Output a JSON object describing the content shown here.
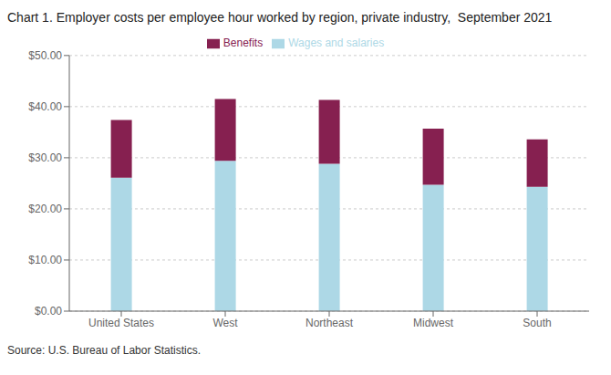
{
  "chart_data": {
    "type": "bar",
    "title": "Chart 1. Employer costs per employee hour worked by region, private industry,  September 2021",
    "annotations": [
      "Source: U.S. Bureau of Labor Statistics."
    ],
    "categories": [
      "United States",
      "West",
      "Northeast",
      "Midwest",
      "South"
    ],
    "series": [
      {
        "name": "Wages and salaries",
        "color": "#ADD8E6",
        "values": [
          26.1,
          29.4,
          28.8,
          24.7,
          24.3
        ]
      },
      {
        "name": "Benefits",
        "color": "#862050",
        "values": [
          11.3,
          12.1,
          12.5,
          11.0,
          9.3
        ]
      }
    ],
    "stacked": true,
    "ylim": [
      0,
      50
    ],
    "yticks": [
      {
        "value": 0,
        "label": "$0.00"
      },
      {
        "value": 10,
        "label": "$10.00"
      },
      {
        "value": 20,
        "label": "$20.00"
      },
      {
        "value": 30,
        "label": "$30.00"
      },
      {
        "value": 40,
        "label": "$40.00"
      },
      {
        "value": 50,
        "label": "$50.00"
      }
    ],
    "grid": true,
    "legend": "top"
  }
}
